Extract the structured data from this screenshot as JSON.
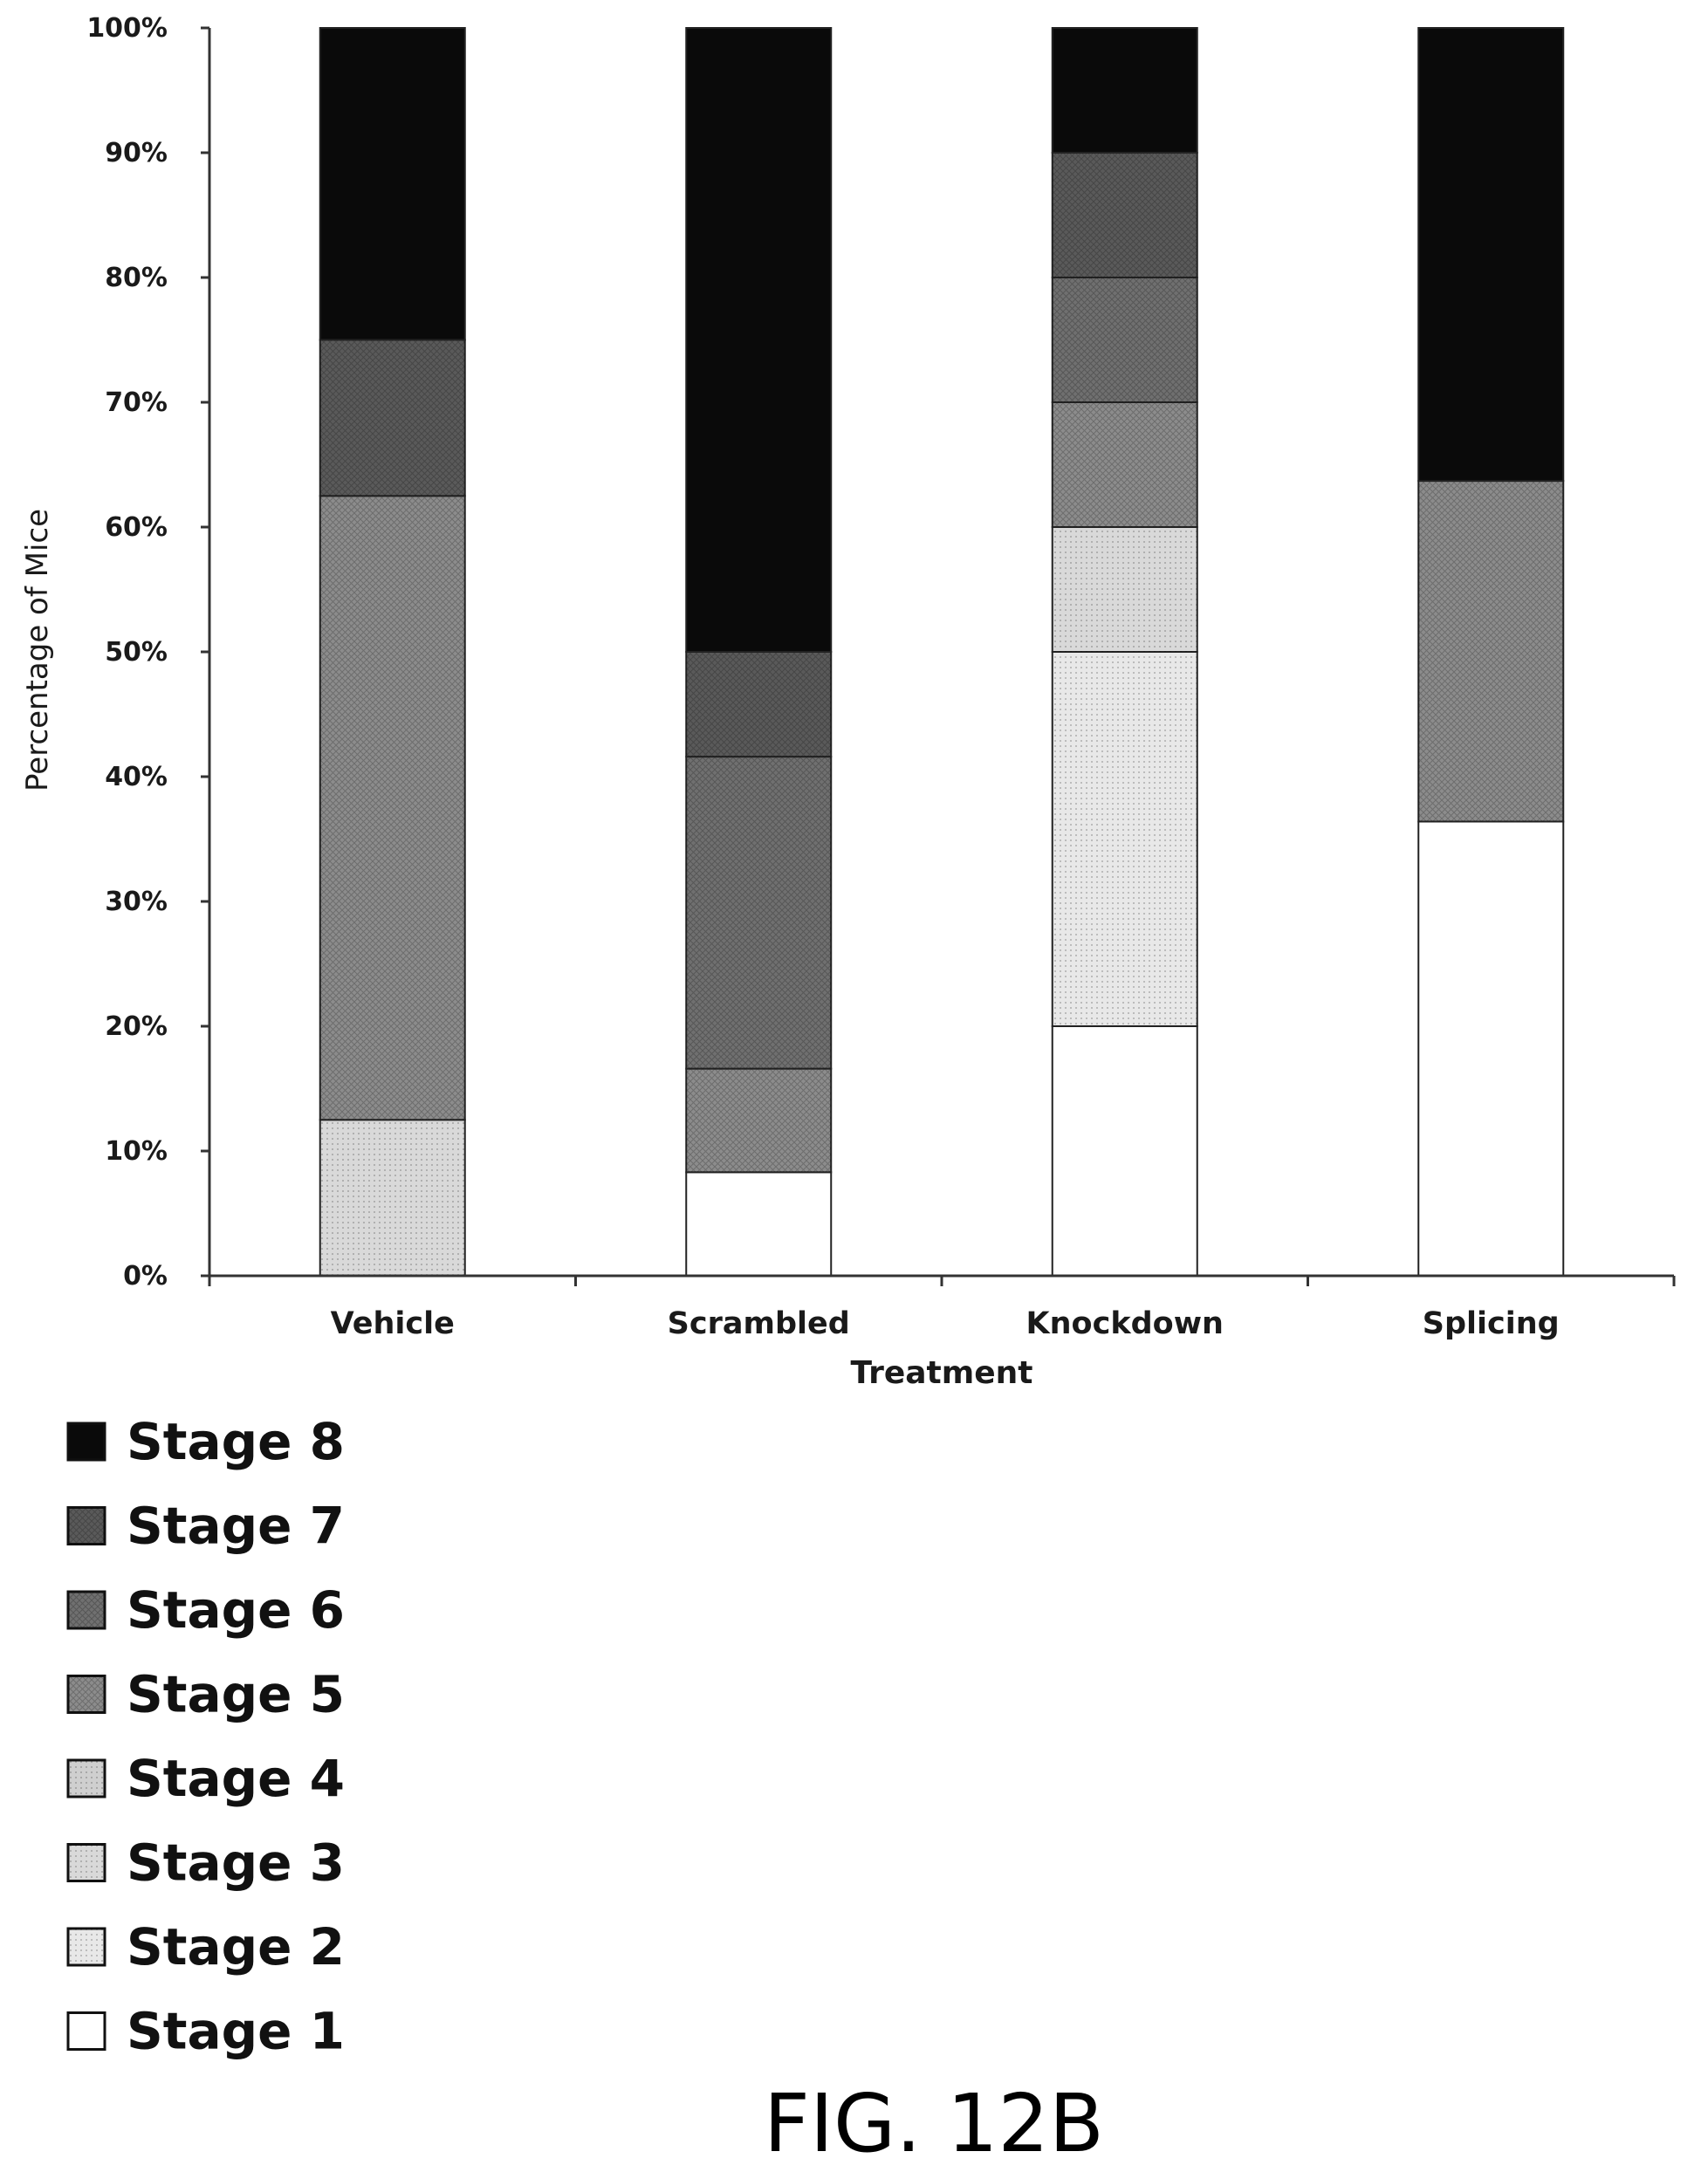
{
  "chart_data": {
    "type": "bar",
    "stacked": true,
    "xlabel": "Treatment",
    "ylabel": "Percentage of Mice",
    "ylim": [
      0,
      100
    ],
    "yticks": [
      "0%",
      "10%",
      "20%",
      "30%",
      "40%",
      "50%",
      "60%",
      "70%",
      "80%",
      "90%",
      "100%"
    ],
    "categories": [
      "Vehicle",
      "Scrambled",
      "Knockdown",
      "Splicing"
    ],
    "series": [
      {
        "name": "Stage 1",
        "color": "#ffffff",
        "pattern": "none",
        "values": [
          0,
          8.3,
          20,
          36.4
        ]
      },
      {
        "name": "Stage 2",
        "color": "#e8e8e8",
        "pattern": "dot",
        "values": [
          0,
          0,
          30,
          0
        ]
      },
      {
        "name": "Stage 3",
        "color": "#d9d9d9",
        "pattern": "dot",
        "values": [
          12.5,
          0,
          10,
          0
        ]
      },
      {
        "name": "Stage 4",
        "color": "#cfcfcf",
        "pattern": "dot",
        "values": [
          0,
          0,
          0,
          0
        ]
      },
      {
        "name": "Stage 5",
        "color": "#8c8c8c",
        "pattern": "cross",
        "values": [
          50,
          8.3,
          10,
          27.3
        ]
      },
      {
        "name": "Stage 6",
        "color": "#707070",
        "pattern": "cross",
        "values": [
          0,
          25,
          10,
          0
        ]
      },
      {
        "name": "Stage 7",
        "color": "#5a5a5a",
        "pattern": "cross",
        "values": [
          12.5,
          8.4,
          10,
          0
        ]
      },
      {
        "name": "Stage 8",
        "color": "#0a0a0a",
        "pattern": "none",
        "values": [
          25,
          50,
          10,
          36.3
        ]
      }
    ],
    "legend": {
      "placement": "bottom-left",
      "order": [
        "Stage 8",
        "Stage 7",
        "Stage 6",
        "Stage 5",
        "Stage 4",
        "Stage 3",
        "Stage 2",
        "Stage 1"
      ]
    }
  },
  "figure": {
    "caption": "FIG. 12B"
  }
}
